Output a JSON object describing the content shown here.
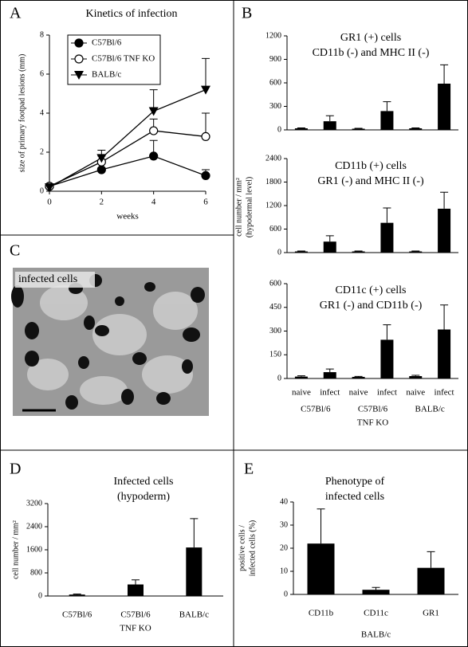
{
  "image": {
    "panel": "C",
    "caption": "infected cells"
  },
  "chart_data": [
    {
      "type": "line",
      "panel": "A",
      "title": [
        "Kinetics of infection"
      ],
      "xlabel": "weeks",
      "ylabel": [
        "size of primary footpad lesions (mm)"
      ],
      "x": [
        0,
        2,
        4,
        6
      ],
      "xlim": [
        0,
        6
      ],
      "xticks": [
        0,
        2,
        4,
        6
      ],
      "ylim": [
        0,
        8
      ],
      "yticks": [
        0,
        2,
        4,
        6,
        8
      ],
      "legend": "upper left",
      "series": [
        {
          "name": "C57Bl/6",
          "color": "#000000",
          "marker": "circle-filled",
          "values": [
            0.25,
            1.1,
            1.8,
            0.8
          ],
          "errors": [
            0.1,
            0.1,
            0.8,
            0.3
          ]
        },
        {
          "name": "C57Bl/6  TNF KO",
          "color": "#000000",
          "marker": "circle-open",
          "values": [
            0.25,
            1.5,
            3.1,
            2.8
          ],
          "errors": [
            0.1,
            0.3,
            0.6,
            1.2
          ]
        },
        {
          "name": "BALB/c",
          "color": "#000000",
          "marker": "triangle-down",
          "values": [
            0.2,
            1.7,
            4.1,
            5.2
          ],
          "errors": [
            0.1,
            0.4,
            1.1,
            1.6
          ]
        }
      ]
    },
    {
      "type": "bar",
      "panel": "B",
      "title": [
        "GR1 (+) cells",
        "CD11b (-) and MHC II (-)"
      ],
      "color": "#000000",
      "ylim": [
        0,
        1200
      ],
      "yticks": [
        0,
        300,
        600,
        900,
        1200
      ],
      "values": [
        20,
        110,
        15,
        240,
        20,
        590
      ],
      "errors": [
        5,
        70,
        5,
        120,
        5,
        240
      ]
    },
    {
      "type": "bar",
      "title": [
        "CD11b (+) cells",
        "GR1 (-) and MHC II (-)"
      ],
      "ylabel": [
        "cell number / mm²",
        "(hypodermal level)"
      ],
      "color": "#000000",
      "ylim": [
        0,
        2400
      ],
      "yticks": [
        0,
        600,
        1200,
        1800,
        2400
      ],
      "values": [
        30,
        280,
        30,
        760,
        30,
        1120
      ],
      "errors": [
        10,
        150,
        10,
        380,
        10,
        420
      ]
    },
    {
      "type": "bar",
      "title": [
        "CD11c (+) cells",
        "GR1 (-) and CD11b (-)"
      ],
      "color": "#000000",
      "ylim": [
        0,
        600
      ],
      "yticks": [
        0,
        150,
        300,
        450,
        600
      ],
      "categories": [
        "naive",
        "infect",
        "naive",
        "infect",
        "naive",
        "infect"
      ],
      "groups": [
        [
          "C57Bl/6"
        ],
        [
          "C57Bl/6",
          "TNF KO"
        ],
        [
          "BALB/c"
        ]
      ],
      "values": [
        12,
        40,
        10,
        245,
        15,
        310
      ],
      "errors": [
        5,
        20,
        3,
        95,
        5,
        155
      ]
    },
    {
      "type": "bar",
      "panel": "D",
      "title": [
        "Infected cells",
        "(hypoderm)"
      ],
      "ylabel": [
        "cell number / mm²"
      ],
      "color": "#000000",
      "ylim": [
        0,
        3200
      ],
      "yticks": [
        0,
        800,
        1600,
        2400,
        3200
      ],
      "categories": [
        [
          "C57Bl/6"
        ],
        [
          "C57Bl/6",
          "TNF KO"
        ],
        [
          "BALB/c"
        ]
      ],
      "values": [
        50,
        400,
        1680
      ],
      "errors": [
        20,
        160,
        1000
      ]
    },
    {
      "type": "bar",
      "panel": "E",
      "title": [
        "Phenotype of",
        "infected cells"
      ],
      "ylabel": [
        "positive cells /",
        "infected cells (%)"
      ],
      "xlabel": "BALB/c",
      "color": "#000000",
      "ylim": [
        0,
        40
      ],
      "yticks": [
        0,
        10,
        20,
        30,
        40
      ],
      "categories": [
        [
          "CD11b"
        ],
        [
          "CD11c"
        ],
        [
          "GR1"
        ]
      ],
      "values": [
        22,
        2,
        11.5
      ],
      "errors": [
        15,
        1,
        7
      ]
    }
  ]
}
